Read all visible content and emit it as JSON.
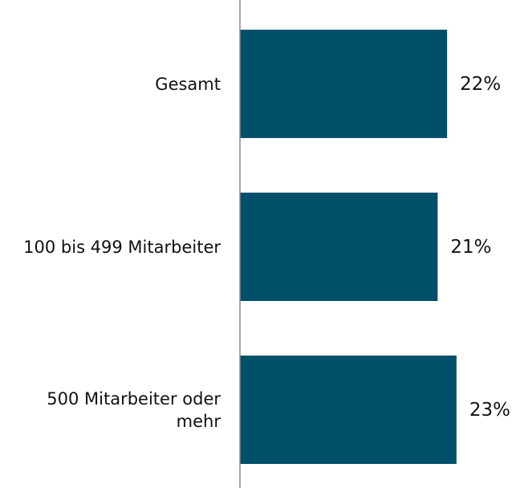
{
  "chart_data": {
    "type": "hbar",
    "categories": [
      "Gesamt",
      "100 bis 499 Mitarbeiter",
      "500 Mitarbeiter oder mehr"
    ],
    "values": [
      22,
      21,
      23
    ],
    "value_labels": [
      "22%",
      "21%",
      "23%"
    ],
    "color": "#00506b",
    "xlim": [
      0,
      30
    ]
  }
}
